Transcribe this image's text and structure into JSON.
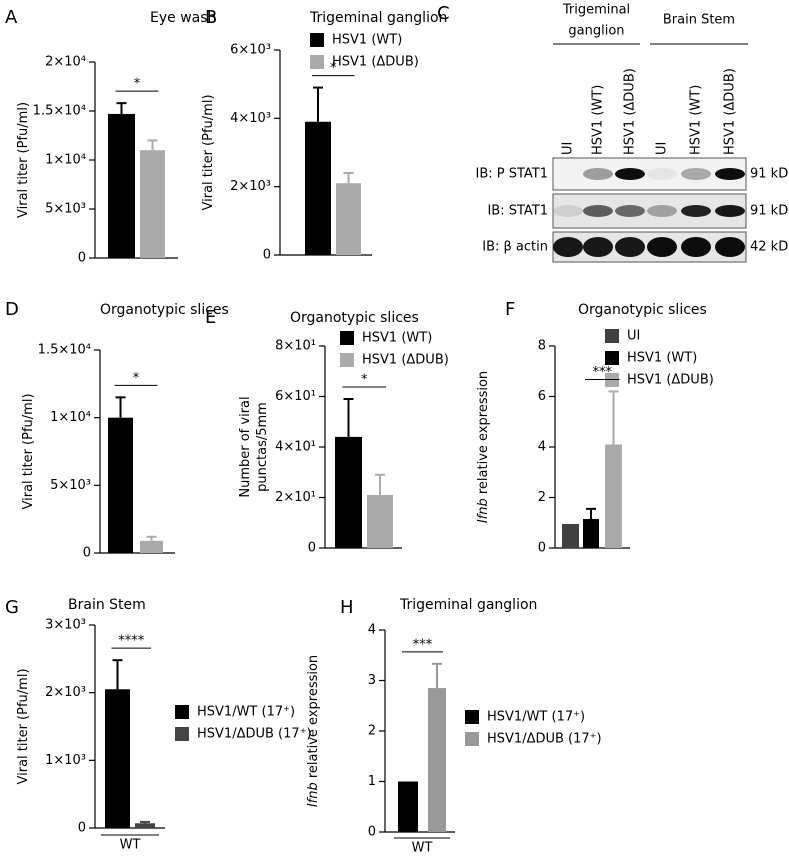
{
  "chart_data": [
    {
      "panel": "A",
      "type": "bar",
      "title": "Eye wash",
      "ylabel": "Viral titer (Pfu/ml)",
      "categories": [
        null
      ],
      "series": [
        {
          "color": "#000000",
          "values": [
            14700
          ],
          "errors": [
            1100
          ]
        },
        {
          "color": "#aaaaaa",
          "values": [
            11000
          ],
          "errors": [
            1000
          ]
        }
      ],
      "ylim": [
        0,
        20000
      ],
      "yticks": [
        0,
        {
          "value": 5000,
          "label": "5×10³"
        },
        {
          "value": 10000,
          "label": "1×10⁴"
        },
        {
          "value": 15000,
          "label": "1.5×10⁴"
        },
        {
          "value": 20000,
          "label": "2×10⁴"
        }
      ],
      "significance": "*"
    },
    {
      "panel": "B",
      "type": "bar",
      "title": "Trigeminal ganglion",
      "ylabel": "Viral titer (Pfu/ml)",
      "categories": [
        null
      ],
      "series": [
        {
          "name": "HSV1 (WT)",
          "color": "#000000",
          "values": [
            3900
          ],
          "errors": [
            1000
          ]
        },
        {
          "name": "HSV1 (ΔDUB)",
          "color": "#aaaaaa",
          "values": [
            2100
          ],
          "errors": [
            300
          ]
        }
      ],
      "ylim": [
        0,
        6000
      ],
      "yticks": [
        0,
        {
          "value": 2000,
          "label": "2×10³"
        },
        {
          "value": 4000,
          "label": "4×10³"
        },
        {
          "value": 6000,
          "label": "6×10³"
        }
      ],
      "significance": "*"
    },
    {
      "panel": "D",
      "type": "bar",
      "title": "Organotypic slices",
      "ylabel": "Viral titer (Pfu/ml)",
      "categories": [
        null
      ],
      "series": [
        {
          "color": "#000000",
          "values": [
            10000
          ],
          "errors": [
            1500
          ]
        },
        {
          "color": "#aaaaaa",
          "values": [
            900
          ],
          "errors": [
            300
          ]
        }
      ],
      "ylim": [
        0,
        15000
      ],
      "yticks": [
        0,
        {
          "value": 5000,
          "label": "5×10³"
        },
        {
          "value": 10000,
          "label": "1×10⁴"
        },
        {
          "value": 15000,
          "label": "1.5×10⁴"
        }
      ],
      "significance": "*"
    },
    {
      "panel": "E",
      "type": "bar",
      "title": "Organotypic slices",
      "ylabel": [
        "Number of viral",
        "punctas/5mm"
      ],
      "categories": [
        null
      ],
      "series": [
        {
          "name": "HSV1 (WT)",
          "color": "#000000",
          "values": [
            44
          ],
          "errors": [
            15
          ]
        },
        {
          "name": "HSV1 (ΔDUB)",
          "color": "#aaaaaa",
          "values": [
            21
          ],
          "errors": [
            8
          ]
        }
      ],
      "ylim": [
        0,
        80
      ],
      "yticks": [
        0,
        {
          "value": 20,
          "label": "2×10¹"
        },
        {
          "value": 40,
          "label": "4×10¹"
        },
        {
          "value": 60,
          "label": "6×10¹"
        },
        {
          "value": 80,
          "label": "8×10¹"
        }
      ],
      "significance": "*"
    },
    {
      "panel": "F",
      "type": "bar",
      "title": "Organotypic slices",
      "ylabel_gene": "Ifnb",
      "ylabel": "relative expression",
      "categories": [
        null
      ],
      "series": [
        {
          "name": "UI",
          "color": "#404040",
          "values": [
            0.95
          ]
        },
        {
          "name": "HSV1 (WT)",
          "color": "#000000",
          "values": [
            1.15
          ],
          "errors": [
            0.4
          ]
        },
        {
          "name": "HSV1 (ΔDUB)",
          "color": "#aaaaaa",
          "values": [
            4.1
          ],
          "errors": [
            2.1
          ]
        }
      ],
      "ylim": [
        0,
        8
      ],
      "yticks": [
        0,
        2,
        4,
        6,
        8
      ],
      "significance": "***"
    },
    {
      "panel": "G",
      "type": "bar",
      "title": "Brain Stem",
      "ylabel": "Viral titer (Pfu/ml)",
      "categories": [
        "WT"
      ],
      "series": [
        {
          "name": "HSV1/WT (17⁺)",
          "color": "#000000",
          "values": [
            2050
          ],
          "errors": [
            430
          ]
        },
        {
          "name": "HSV1/ΔDUB (17⁺)",
          "color": "#444444",
          "values": [
            70
          ],
          "errors": [
            20
          ]
        }
      ],
      "ylim": [
        0,
        3000
      ],
      "yticks": [
        0,
        {
          "value": 1000,
          "label": "1×10³"
        },
        {
          "value": 2000,
          "label": "2×10³"
        },
        {
          "value": 3000,
          "label": "3×10³"
        }
      ],
      "significance": "****"
    },
    {
      "panel": "H",
      "type": "bar",
      "title": "Trigeminal ganglion",
      "ylabel_gene": "Ifnb",
      "ylabel": "relative expression",
      "categories": [
        "WT"
      ],
      "series": [
        {
          "name": "HSV1/WT (17⁺)",
          "color": "#000000",
          "values": [
            1.0
          ]
        },
        {
          "name": "HSV1/ΔDUB (17⁺)",
          "color": "#999999",
          "values": [
            2.85
          ],
          "errors": [
            0.48
          ]
        }
      ],
      "ylim": [
        0,
        4
      ],
      "yticks": [
        0,
        1,
        2,
        3,
        4
      ],
      "significance": "***"
    }
  ],
  "blot": {
    "panel": "C",
    "groups": [
      {
        "label_lines": [
          "Trigeminal",
          "ganglion"
        ]
      },
      {
        "label_lines": [
          "Brain Stem"
        ]
      }
    ],
    "lanes": [
      "UI",
      "HSV1 (WT)",
      "HSV1 (ΔDUB)",
      "UI",
      "HSV1 (WT)",
      "HSV1 (ΔDUB)"
    ],
    "rows": [
      {
        "label": "IB: P STAT1",
        "size": "91 kD"
      },
      {
        "label": "IB: STAT1",
        "size": "91 kD"
      },
      {
        "label": "IB: β actin",
        "size": "42 kD"
      }
    ]
  }
}
